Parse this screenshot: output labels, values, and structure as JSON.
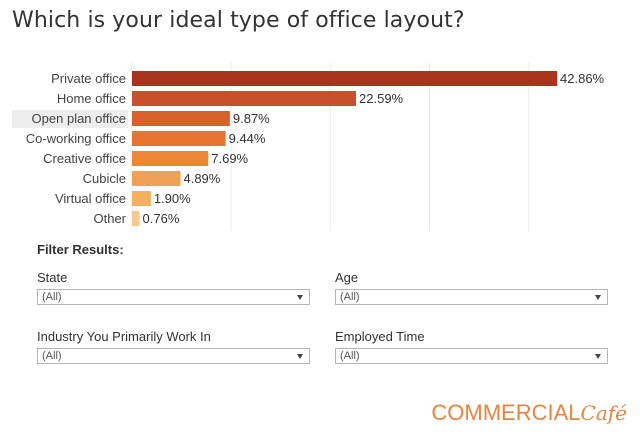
{
  "title": "Which is your ideal type of office layout?",
  "chart_data": {
    "type": "bar",
    "orientation": "horizontal",
    "categories": [
      "Private office",
      "Home office",
      "Open plan office",
      "Co-working office",
      "Creative office",
      "Cubicle",
      "Virtual office",
      "Other"
    ],
    "values": [
      42.86,
      22.59,
      9.87,
      9.44,
      7.69,
      4.89,
      1.9,
      0.76
    ],
    "value_labels": [
      "42.86%",
      "22.59%",
      "9.87%",
      "9.44%",
      "7.69%",
      "4.89%",
      "1.90%",
      "0.76%"
    ],
    "colors": [
      "#a9341c",
      "#c8502a",
      "#d6622a",
      "#e8752f",
      "#ee8535",
      "#f0a155",
      "#f2b060",
      "#f6c88f"
    ],
    "highlighted_category": "Open plan office",
    "xlim": [
      0,
      48
    ],
    "grid": true,
    "legend": "none"
  },
  "filters": {
    "heading": "Filter Results:",
    "state": {
      "label": "State",
      "value": "(All)"
    },
    "age": {
      "label": "Age",
      "value": "(All)"
    },
    "industry": {
      "label": "Industry You Primarily Work In",
      "value": "(All)"
    },
    "employed_time": {
      "label": "Employed Time",
      "value": "(All)"
    }
  },
  "brand": {
    "main": "COMMERCIAL",
    "script": "Café"
  }
}
